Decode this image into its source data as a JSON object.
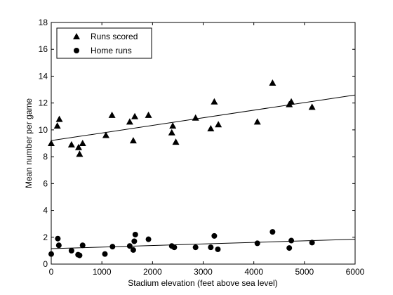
{
  "chart_data": {
    "type": "scatter",
    "xlabel": "Stadium elevation (feet above sea level)",
    "ylabel": "Mean number per game",
    "xlim": [
      0,
      6000
    ],
    "ylim": [
      0,
      18
    ],
    "xticks": [
      0,
      1000,
      2000,
      3000,
      4000,
      5000,
      6000
    ],
    "yticks": [
      0,
      2,
      4,
      6,
      8,
      10,
      12,
      14,
      16,
      18
    ],
    "grid": false,
    "legend_position": "top-left",
    "series": [
      {
        "name": "Runs scored",
        "marker": "triangle",
        "color": "#000000",
        "points": [
          [
            0,
            9.0
          ],
          [
            120,
            10.3
          ],
          [
            160,
            10.8
          ],
          [
            400,
            8.9
          ],
          [
            540,
            8.7
          ],
          [
            560,
            8.2
          ],
          [
            620,
            9.0
          ],
          [
            1080,
            9.6
          ],
          [
            1200,
            11.1
          ],
          [
            1550,
            10.6
          ],
          [
            1620,
            9.2
          ],
          [
            1650,
            11.0
          ],
          [
            1920,
            11.1
          ],
          [
            2380,
            9.8
          ],
          [
            2400,
            10.3
          ],
          [
            2460,
            9.1
          ],
          [
            2850,
            10.9
          ],
          [
            3150,
            10.1
          ],
          [
            3220,
            12.1
          ],
          [
            3300,
            10.4
          ],
          [
            4070,
            10.6
          ],
          [
            4370,
            13.5
          ],
          [
            4700,
            11.9
          ],
          [
            4740,
            12.1
          ],
          [
            5150,
            11.7
          ]
        ],
        "trend": {
          "x": [
            0,
            6000
          ],
          "y": [
            9.2,
            12.6
          ]
        }
      },
      {
        "name": "Home runs",
        "marker": "circle",
        "color": "#000000",
        "points": [
          [
            0,
            0.75
          ],
          [
            130,
            1.9
          ],
          [
            150,
            1.4
          ],
          [
            400,
            1.0
          ],
          [
            530,
            0.7
          ],
          [
            560,
            0.65
          ],
          [
            620,
            1.4
          ],
          [
            1060,
            0.75
          ],
          [
            1210,
            1.3
          ],
          [
            1550,
            1.35
          ],
          [
            1620,
            1.05
          ],
          [
            1640,
            1.7
          ],
          [
            1660,
            2.2
          ],
          [
            1920,
            1.85
          ],
          [
            2380,
            1.35
          ],
          [
            2430,
            1.25
          ],
          [
            2850,
            1.25
          ],
          [
            3150,
            1.25
          ],
          [
            3220,
            2.1
          ],
          [
            3290,
            1.1
          ],
          [
            4070,
            1.55
          ],
          [
            4370,
            2.4
          ],
          [
            4700,
            1.2
          ],
          [
            4740,
            1.75
          ],
          [
            5150,
            1.6
          ]
        ],
        "trend": {
          "x": [
            0,
            6000
          ],
          "y": [
            1.15,
            1.85
          ]
        }
      }
    ]
  }
}
